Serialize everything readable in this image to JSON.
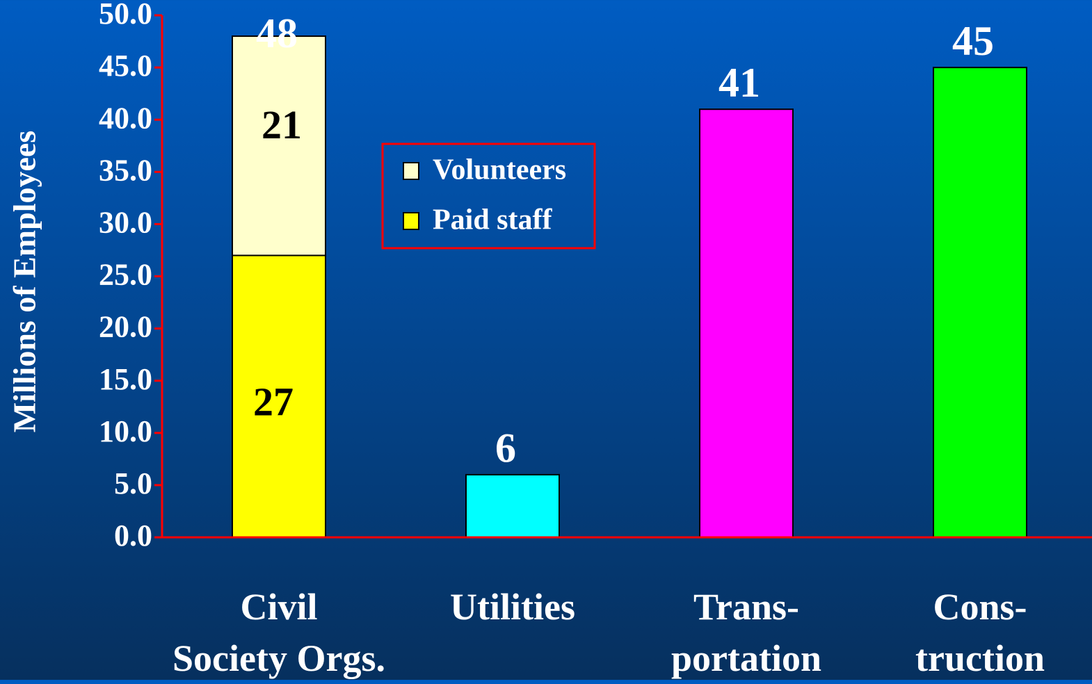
{
  "chart_data": {
    "type": "bar",
    "stacked": true,
    "ylabel": "Millions of Employees",
    "categories": [
      "Civil\nSociety Orgs.",
      "Utilities",
      "Trans-\nportation",
      "Cons-\ntruction"
    ],
    "series": [
      {
        "name": "Paid staff",
        "color": "#ffff00",
        "values": [
          27,
          null,
          null,
          null
        ]
      },
      {
        "name": "Volunteers",
        "color": "#ffffcc",
        "values": [
          21,
          null,
          null,
          null
        ]
      },
      {
        "color": [
          "#00ffff",
          "#00ffff",
          "#ff00ff",
          "#00ff00"
        ],
        "values": [
          null,
          6,
          41,
          45
        ]
      }
    ],
    "totals": [
      48,
      null,
      null,
      null
    ],
    "ylim": [
      0,
      50
    ],
    "yticks": [
      {
        "value": 0,
        "label": "0.0"
      },
      {
        "value": 5,
        "label": "5.0"
      },
      {
        "value": 10,
        "label": "10.0"
      },
      {
        "value": 15,
        "label": "15.0"
      },
      {
        "value": 20,
        "label": "20.0"
      },
      {
        "value": 25,
        "label": "25.0"
      },
      {
        "value": 30,
        "label": "30.0"
      },
      {
        "value": 35,
        "label": "35.0"
      },
      {
        "value": 40,
        "label": "40.0"
      },
      {
        "value": 45,
        "label": "45.0"
      },
      {
        "value": 50,
        "label": "50.0"
      }
    ],
    "axis_color": "#ff0000"
  }
}
